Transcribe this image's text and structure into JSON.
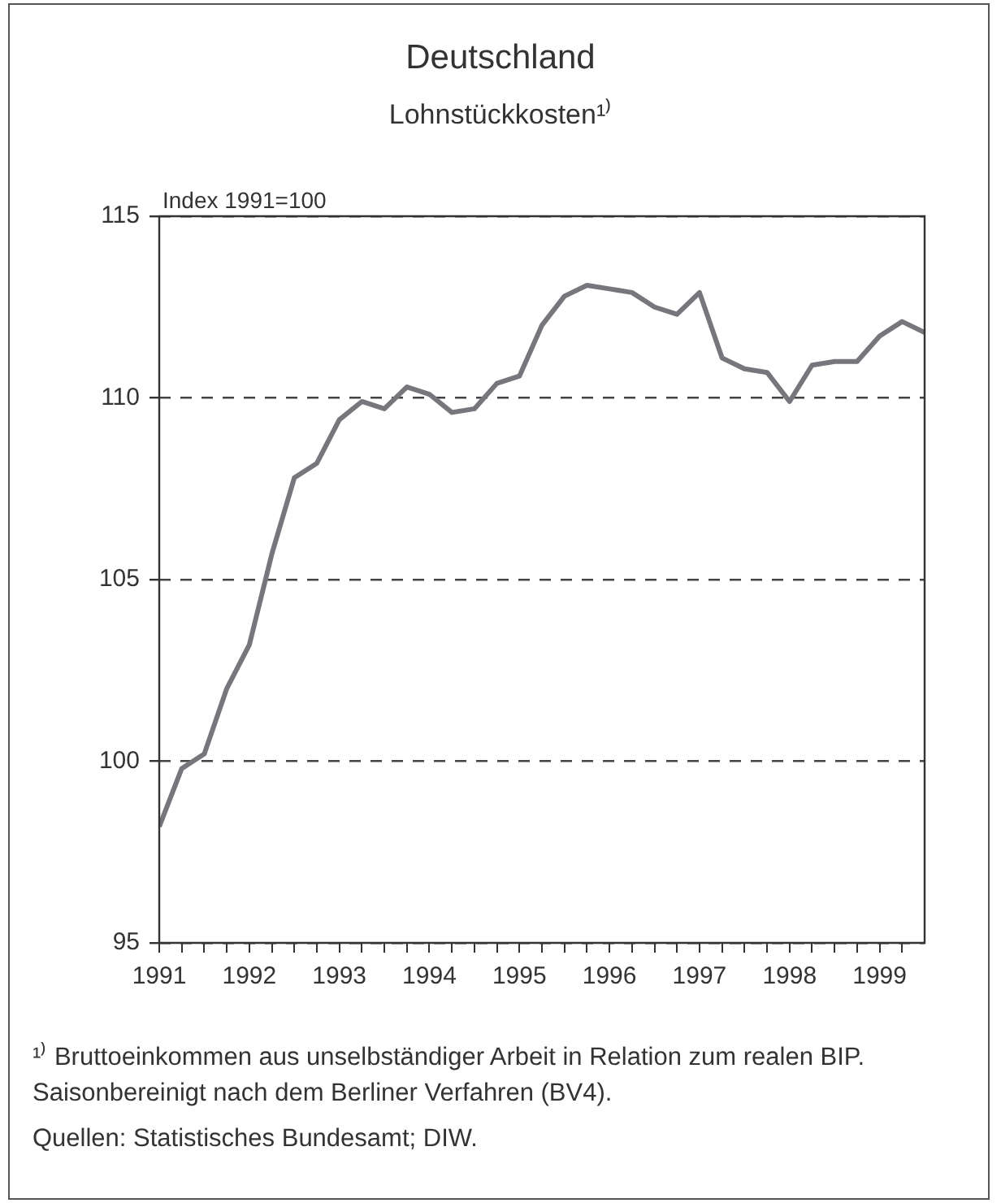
{
  "chart_data": {
    "type": "line",
    "title": "Deutschland",
    "subtitle": "Lohnstückkosten¹⁾",
    "ylabel": "Index 1991=100",
    "x": [
      1991,
      1991.25,
      1991.5,
      1991.75,
      1992,
      1992.25,
      1992.5,
      1992.75,
      1993,
      1993.25,
      1993.5,
      1993.75,
      1994,
      1994.25,
      1994.5,
      1994.75,
      1995,
      1995.25,
      1995.5,
      1995.75,
      1996,
      1996.25,
      1996.5,
      1996.75,
      1997,
      1997.25,
      1997.5,
      1997.75,
      1998,
      1998.25,
      1998.5,
      1998.75,
      1999,
      1999.25,
      1999.5
    ],
    "series": [
      {
        "color": "#76767c",
        "values": [
          98.2,
          99.8,
          100.2,
          102.0,
          103.2,
          105.7,
          107.8,
          108.2,
          109.4,
          109.9,
          109.7,
          110.3,
          110.1,
          109.6,
          109.7,
          110.4,
          110.6,
          112.0,
          112.8,
          113.1,
          113.0,
          112.9,
          112.5,
          112.3,
          112.9,
          111.1,
          110.8,
          110.7,
          109.9,
          110.9,
          111.0,
          111.0,
          111.7,
          112.1,
          111.8
        ]
      }
    ],
    "xlim": [
      1991,
      1999.5
    ],
    "xticks": [
      1991,
      {
        "value": 1991.25,
        "label": null
      },
      {
        "value": 1991.5,
        "label": null
      },
      {
        "value": 1991.75,
        "label": null
      },
      1992,
      {
        "value": 1992.25,
        "label": null
      },
      {
        "value": 1992.5,
        "label": null
      },
      {
        "value": 1992.75,
        "label": null
      },
      1993,
      {
        "value": 1993.25,
        "label": null
      },
      {
        "value": 1993.5,
        "label": null
      },
      {
        "value": 1993.75,
        "label": null
      },
      1994,
      {
        "value": 1994.25,
        "label": null
      },
      {
        "value": 1994.5,
        "label": null
      },
      {
        "value": 1994.75,
        "label": null
      },
      1995,
      {
        "value": 1995.25,
        "label": null
      },
      {
        "value": 1995.5,
        "label": null
      },
      {
        "value": 1995.75,
        "label": null
      },
      1996,
      {
        "value": 1996.25,
        "label": null
      },
      {
        "value": 1996.5,
        "label": null
      },
      {
        "value": 1996.75,
        "label": null
      },
      1997,
      {
        "value": 1997.25,
        "label": null
      },
      {
        "value": 1997.5,
        "label": null
      },
      {
        "value": 1997.75,
        "label": null
      },
      1998,
      {
        "value": 1998.25,
        "label": null
      },
      {
        "value": 1998.5,
        "label": null
      },
      {
        "value": 1998.75,
        "label": null
      },
      1999,
      {
        "value": 1999.25,
        "label": null
      }
    ],
    "ylim": [
      95,
      115
    ],
    "yticks": [
      95,
      100,
      105,
      110,
      115
    ],
    "grid": "y",
    "line_style": "solid",
    "marker": "none",
    "legend": false,
    "annotations": [
      "¹⁾ Bruttoeinkommen aus unselbständiger Arbeit in Relation zum realen BIP. Saisonbereinigt nach dem Berliner Verfahren (BV4).",
      "Quellen: Statistisches Bundesamt; DIW."
    ]
  }
}
